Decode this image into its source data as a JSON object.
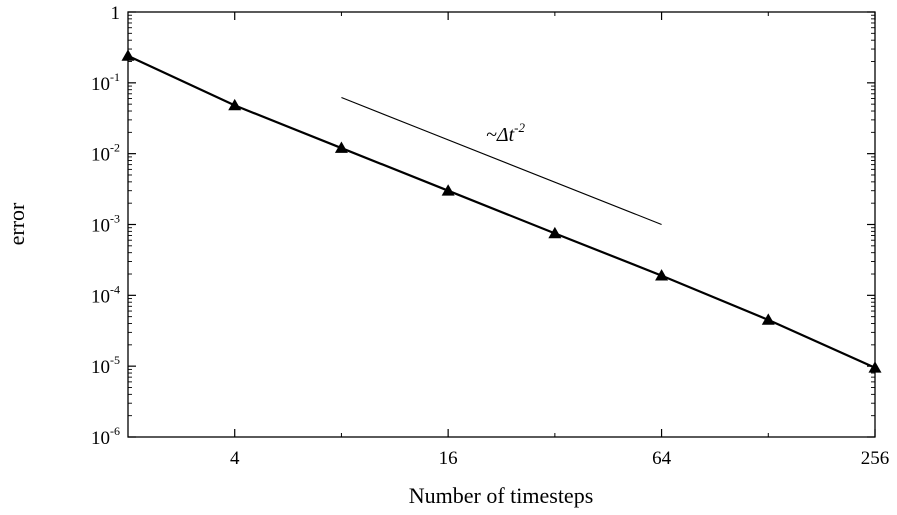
{
  "chart_data": {
    "type": "line",
    "xlabel": "Number of timesteps",
    "ylabel": "error",
    "xscale": "log2",
    "yscale": "log10",
    "xlim": [
      2,
      256
    ],
    "ylim": [
      1e-06,
      1
    ],
    "grid": false,
    "x_ticks": [
      {
        "value": 4,
        "label": "4"
      },
      {
        "value": 16,
        "label": "16"
      },
      {
        "value": 64,
        "label": "64"
      },
      {
        "value": 256,
        "label": "256"
      }
    ],
    "y_ticks": [
      {
        "value": 1,
        "base": "1",
        "exp": ""
      },
      {
        "value": 0.1,
        "base": "10",
        "exp": "-1"
      },
      {
        "value": 0.01,
        "base": "10",
        "exp": "-2"
      },
      {
        "value": 0.001,
        "base": "10",
        "exp": "-3"
      },
      {
        "value": 0.0001,
        "base": "10",
        "exp": "-4"
      },
      {
        "value": 1e-05,
        "base": "10",
        "exp": "-5"
      },
      {
        "value": 1e-06,
        "base": "10",
        "exp": "-6"
      }
    ],
    "series": [
      {
        "marker": "triangle",
        "color": "#000000",
        "x": [
          2,
          4,
          8,
          16,
          32,
          64,
          128,
          256
        ],
        "y": [
          0.24,
          0.048,
          0.012,
          0.003,
          0.00075,
          0.00019,
          4.5e-05,
          9.5e-06
        ]
      }
    ],
    "reference_line": {
      "x": [
        8,
        64
      ],
      "y": [
        0.062,
        0.001
      ],
      "label_prefix": "~Δt",
      "label_exp": "-2"
    }
  }
}
